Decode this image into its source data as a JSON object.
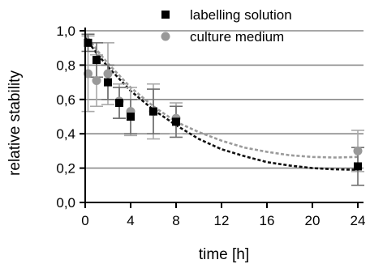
{
  "chart_data": {
    "type": "scatter",
    "xlabel": "time [h]",
    "ylabel": "relative stability",
    "xlim": [
      0,
      24.5
    ],
    "ylim": [
      0,
      1.0
    ],
    "xticks": [
      0,
      4,
      8,
      12,
      16,
      20,
      24
    ],
    "xtick_labels": [
      "0",
      "4",
      "8",
      "12",
      "16",
      "20",
      "24"
    ],
    "yticks": [
      0,
      0.2,
      0.4,
      0.6,
      0.8,
      1.0
    ],
    "ytick_labels": [
      "0,0",
      "0,2",
      "0,4",
      "0,6",
      "0,8",
      "1,0"
    ],
    "grid": "horizontal",
    "legend_position": "top-right",
    "series": [
      {
        "name": "labelling solution",
        "marker": "square",
        "color": "#000000",
        "x": [
          0.25,
          1,
          2,
          3,
          4,
          6,
          8,
          24
        ],
        "y": [
          0.93,
          0.83,
          0.7,
          0.58,
          0.5,
          0.53,
          0.47,
          0.21
        ],
        "yerr": [
          0.05,
          0.1,
          0.1,
          0.09,
          0.1,
          0.13,
          0.09,
          0.11
        ],
        "fit_color": "#111111",
        "fit": {
          "x": [
            0,
            1,
            2,
            3,
            4,
            6,
            8,
            10,
            12,
            14,
            16,
            18,
            20,
            22,
            24
          ],
          "y": [
            0.96,
            0.87,
            0.79,
            0.72,
            0.65,
            0.54,
            0.45,
            0.37,
            0.31,
            0.27,
            0.235,
            0.215,
            0.2,
            0.193,
            0.19
          ]
        }
      },
      {
        "name": "culture medium",
        "marker": "circle",
        "color": "#999999",
        "x": [
          0.25,
          1,
          2,
          3,
          4,
          6,
          8,
          24
        ],
        "y": [
          0.75,
          0.71,
          0.75,
          0.59,
          0.53,
          0.53,
          0.49,
          0.3
        ],
        "yerr": [
          0.22,
          0.15,
          0.18,
          0.1,
          0.14,
          0.16,
          0.09,
          0.12
        ],
        "fit_color": "#9a9a9a",
        "fit": {
          "x": [
            0,
            1,
            2,
            3,
            4,
            6,
            8,
            10,
            12,
            14,
            16,
            18,
            20,
            22,
            24
          ],
          "y": [
            0.98,
            0.89,
            0.81,
            0.74,
            0.67,
            0.56,
            0.47,
            0.41,
            0.36,
            0.32,
            0.295,
            0.275,
            0.265,
            0.262,
            0.265
          ]
        }
      }
    ]
  }
}
